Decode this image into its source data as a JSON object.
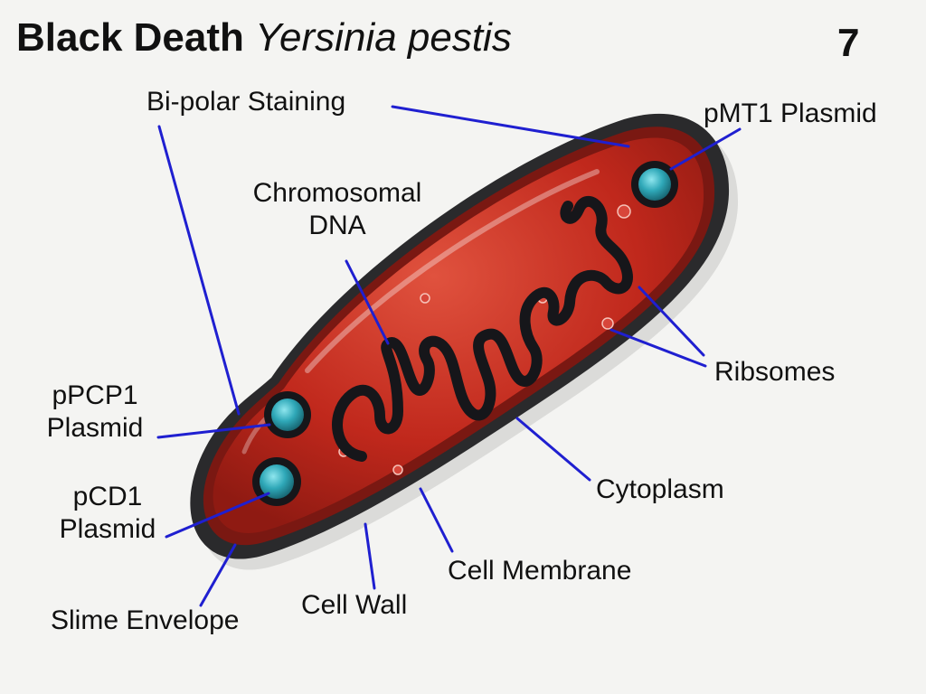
{
  "title": {
    "bold": "Black Death",
    "italic": "Yersinia pestis"
  },
  "figure_number": "7",
  "labels": {
    "bipolar": "Bi-polar Staining",
    "pmt1": "pMT1 Plasmid",
    "chromosomal_line1": "Chromosomal",
    "chromosomal_line2": "DNA",
    "ppcp1_line1": "pPCP1",
    "ppcp1_line2": "Plasmid",
    "pcd1_line1": "pCD1",
    "pcd1_line2": "Plasmid",
    "ribosomes": "Ribsomes",
    "cytoplasm": "Cytoplasm",
    "cell_membrane": "Cell Membrane",
    "cell_wall": "Cell Wall",
    "slime_envelope": "Slime Envelope"
  },
  "colors": {
    "leader_line": "#1f1fd0",
    "cytoplasm": "#c0281c",
    "membrane": "#7a1812",
    "envelope": "#2a2a2c",
    "dna": "#16161a",
    "plasmid": "#2fa8b8",
    "background": "#f4f4f2"
  }
}
